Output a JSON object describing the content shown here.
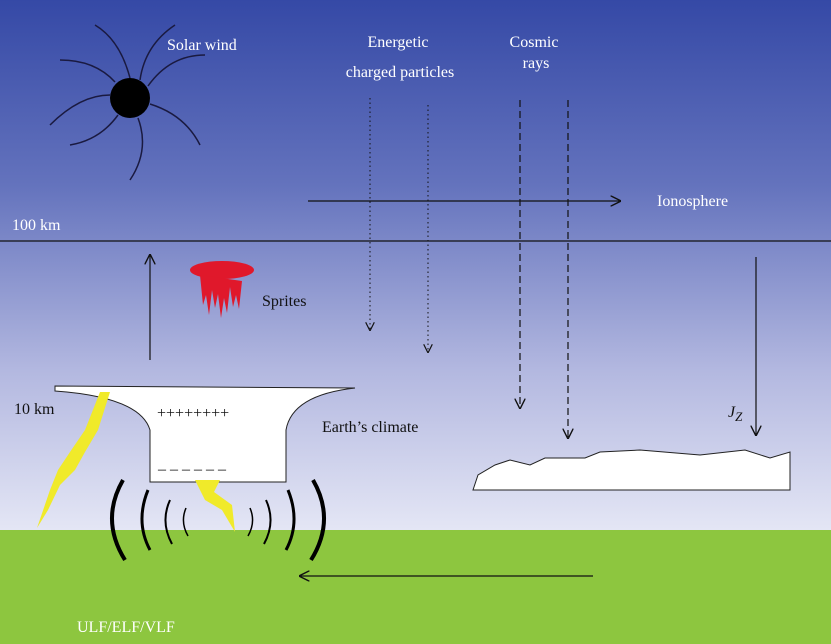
{
  "labels": {
    "solar_wind": "Solar wind",
    "energetic_particles": [
      "Energetic",
      "charged particles"
    ],
    "cosmic_rays": [
      "Cosmic",
      "rays"
    ],
    "ionosphere": "Ionosphere",
    "altitude_100": "100 km",
    "sprites": "Sprites",
    "altitude_10": "10 km",
    "positive_charge": "++++++++",
    "negative_charge": "– – – – – –",
    "earth_climate": "Earth’s climate",
    "current_symbol": "J",
    "current_subscript": "Z",
    "waves": "ULF/ELF/VLF"
  }
}
